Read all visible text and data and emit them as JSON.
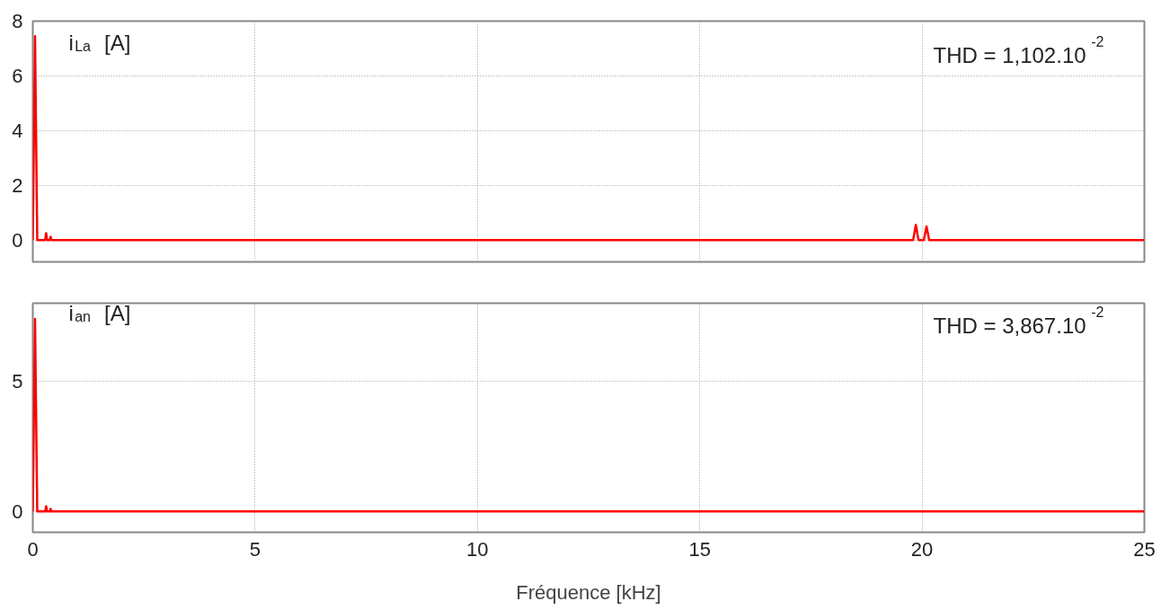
{
  "chart_data": [
    {
      "type": "line",
      "color": "#ff0000",
      "x": [
        0,
        0.05,
        0.1,
        0.28,
        0.3,
        0.32,
        0.38,
        0.4,
        0.42,
        19.8,
        19.86,
        19.92,
        20.04,
        20.1,
        20.16,
        25
      ],
      "values": [
        0,
        7.45,
        0,
        0,
        0.25,
        0,
        0,
        0.12,
        0,
        0,
        0.55,
        0,
        0,
        0.5,
        0,
        0
      ],
      "xlim": [
        0,
        25
      ],
      "xticks": [
        0,
        5,
        10,
        15,
        20,
        25
      ],
      "ylim": [
        -0.8,
        8
      ],
      "yticks": [
        0,
        2,
        4,
        6,
        8
      ],
      "grid": true,
      "tick_labels": "y",
      "annotations": [
        "i$_{La}$  [A]",
        "THD = 1,102.10$^{-2}$"
      ]
    },
    {
      "type": "line",
      "color": "#ff0000",
      "x": [
        0,
        0.05,
        0.1,
        0.28,
        0.3,
        0.32,
        0.38,
        0.4,
        0.42,
        25
      ],
      "values": [
        0,
        7.4,
        0,
        0,
        0.2,
        0,
        0,
        0.1,
        0,
        0
      ],
      "xlim": [
        0,
        25
      ],
      "xticks": [
        0,
        5,
        10,
        15,
        20,
        25
      ],
      "ylim": [
        -0.8,
        8
      ],
      "yticks": [
        0,
        5
      ],
      "grid": true,
      "xlabel": "Fréquence [kHz]",
      "annotations": [
        "i$_{an}$  [A]",
        "THD = 3,867.10$^{-2}$"
      ]
    }
  ]
}
